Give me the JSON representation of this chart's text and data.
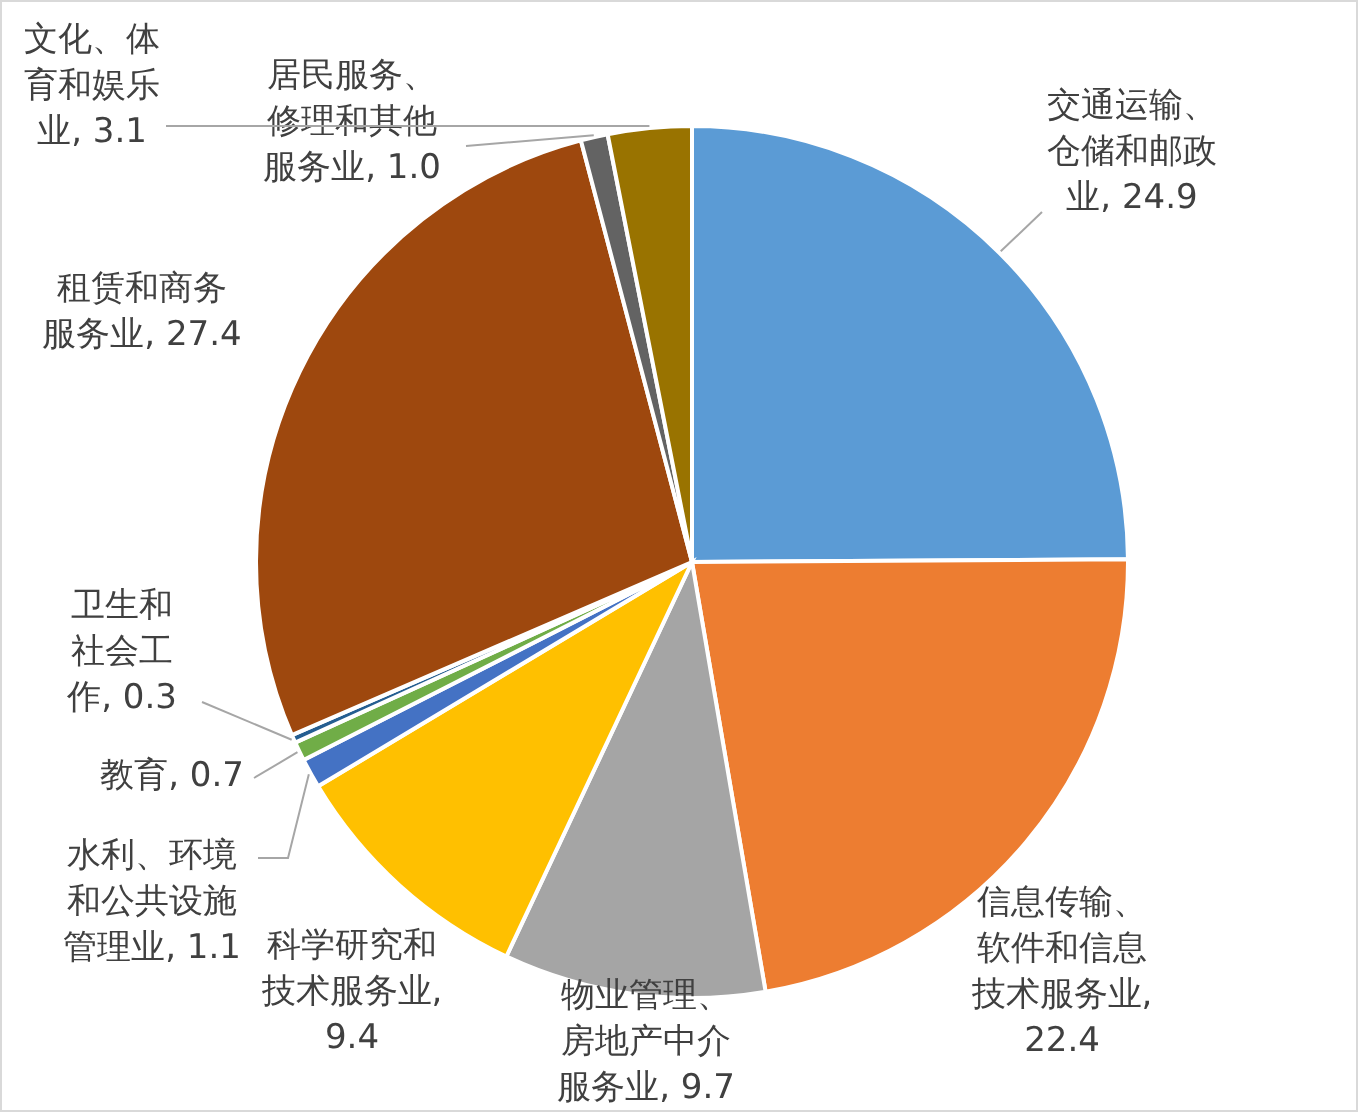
{
  "chart_data": {
    "type": "pie",
    "categories": [
      "交通运输、仓储和邮政业",
      "信息传输、软件和信息技术服务业",
      "物业管理、房地产中介服务业",
      "科学研究和技术服务业",
      "水利、环境和公共设施管理业",
      "教育",
      "卫生和社会工作",
      "租赁和商务服务业",
      "居民服务、修理和其他服务业",
      "文化、体育和娱乐业"
    ],
    "values": [
      24.9,
      22.4,
      9.7,
      9.4,
      1.1,
      0.7,
      0.3,
      27.4,
      1.0,
      3.1
    ],
    "colors": [
      "#5b9bd5",
      "#ed7d31",
      "#a5a5a5",
      "#ffc000",
      "#4472c4",
      "#70ad47",
      "#255e91",
      "#9e480e",
      "#636363",
      "#997300"
    ],
    "value_labels": [
      ", 24.9",
      ", 22.4",
      ", 9.7",
      ", 9.4",
      ", 1.1",
      ", 0.7",
      ", 0.3",
      ", 27.4",
      ", 1.0",
      ", 3.1"
    ],
    "data_labels": true,
    "legend": false
  }
}
